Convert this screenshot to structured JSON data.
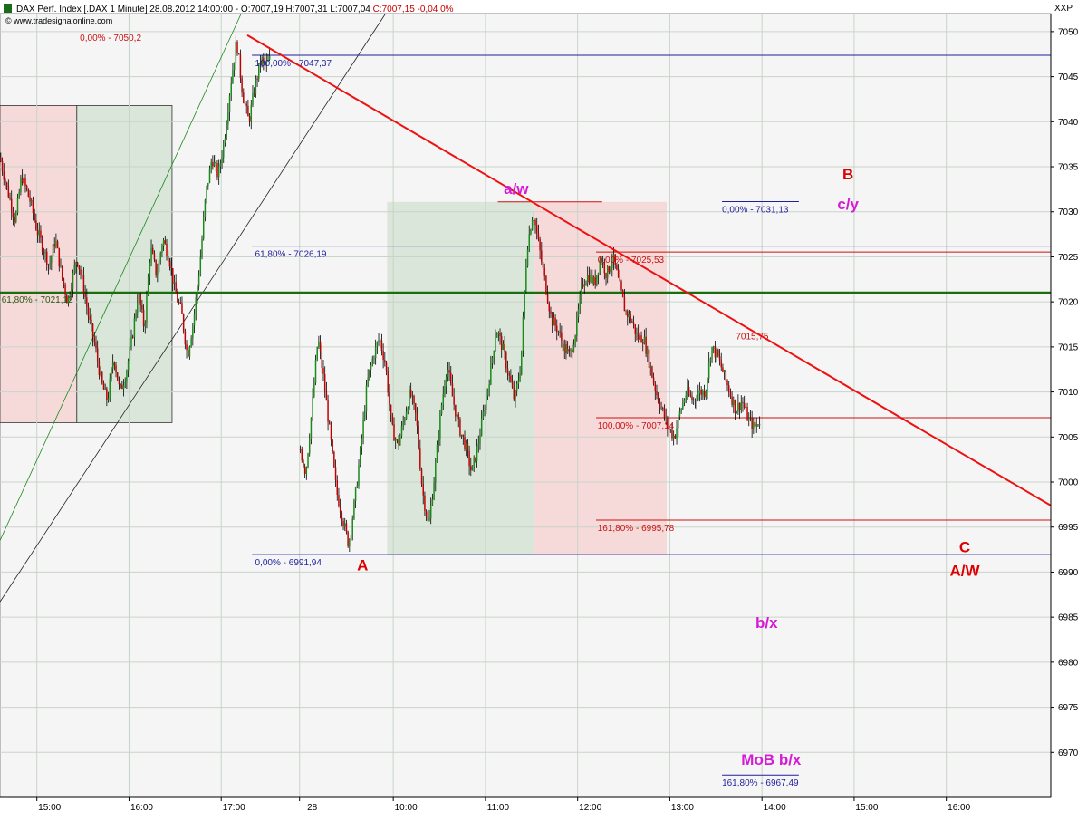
{
  "header": {
    "title": "DAX Perf. Index [.DAX  1 Minute] 28.08.2012 14:00:00 - O:7007,19 H:7007,31 L:7007,04 ",
    "close_text": "C:7007,15 -0,04 0%",
    "source": "© www.tradesignalonline.com",
    "corner_label": "XXP"
  },
  "colors": {
    "bull": "#1a8a1a",
    "bear": "#c00000",
    "fib_blue": "#1f1fa0",
    "fib_red": "#cc1111",
    "trend_red": "#ee1111",
    "support_green": "#1a6e10",
    "wave_magenta": "#d61ad6",
    "wave_red": "#dd0000"
  },
  "chart_data": {
    "type": "candlestick",
    "ylim": [
      6965,
      7052
    ],
    "y_ticks": [
      6970,
      6975,
      6980,
      6985,
      6990,
      6995,
      7000,
      7005,
      7010,
      7015,
      7020,
      7025,
      7030,
      7035,
      7040,
      7045,
      7050
    ],
    "x_ticks": [
      {
        "label": "15:00",
        "t": 0
      },
      {
        "label": "16:00",
        "t": 60
      },
      {
        "label": "17:00",
        "t": 120
      },
      {
        "label": "28",
        "t": 171
      },
      {
        "label": "10:00",
        "t": 232
      },
      {
        "label": "11:00",
        "t": 292
      },
      {
        "label": "12:00",
        "t": 352
      },
      {
        "label": "13:00",
        "t": 412
      },
      {
        "label": "14:00",
        "t": 472
      },
      {
        "label": "15:00",
        "t": 532
      },
      {
        "label": "16:00",
        "t": 592
      }
    ],
    "x_range": [
      -24,
      660
    ],
    "price_path": [
      [
        -24,
        7036
      ],
      [
        -20,
        7033
      ],
      [
        -14,
        7029
      ],
      [
        -10,
        7034
      ],
      [
        -4,
        7031
      ],
      [
        0,
        7028
      ],
      [
        4,
        7026
      ],
      [
        8,
        7024
      ],
      [
        12,
        7027
      ],
      [
        16,
        7023
      ],
      [
        20,
        7020
      ],
      [
        26,
        7025
      ],
      [
        30,
        7022
      ],
      [
        34,
        7018
      ],
      [
        38,
        7015
      ],
      [
        42,
        7011
      ],
      [
        46,
        7009
      ],
      [
        50,
        7014
      ],
      [
        54,
        7010
      ],
      [
        58,
        7012
      ],
      [
        62,
        7016
      ],
      [
        66,
        7021
      ],
      [
        70,
        7017
      ],
      [
        74,
        7026
      ],
      [
        78,
        7023
      ],
      [
        82,
        7027
      ],
      [
        86,
        7025
      ],
      [
        90,
        7021
      ],
      [
        94,
        7019
      ],
      [
        98,
        7014
      ],
      [
        102,
        7018
      ],
      [
        106,
        7024
      ],
      [
        110,
        7032
      ],
      [
        114,
        7036
      ],
      [
        118,
        7034
      ],
      [
        122,
        7038
      ],
      [
        126,
        7044
      ],
      [
        130,
        7049
      ],
      [
        134,
        7043
      ],
      [
        138,
        7040
      ],
      [
        142,
        7044
      ],
      [
        146,
        7047
      ],
      [
        148,
        7046
      ],
      [
        152,
        7047
      ],
      [
        171,
        7004
      ],
      [
        175,
        7001
      ],
      [
        179,
        7008
      ],
      [
        183,
        7016
      ],
      [
        187,
        7011
      ],
      [
        191,
        7005
      ],
      [
        195,
        6999
      ],
      [
        199,
        6996
      ],
      [
        203,
        6993
      ],
      [
        207,
        6998
      ],
      [
        211,
        7004
      ],
      [
        215,
        7011
      ],
      [
        219,
        7014
      ],
      [
        223,
        7016
      ],
      [
        227,
        7013
      ],
      [
        231,
        7006
      ],
      [
        235,
        7004
      ],
      [
        239,
        7007
      ],
      [
        243,
        7010
      ],
      [
        247,
        7007
      ],
      [
        251,
        6999
      ],
      [
        255,
        6995
      ],
      [
        259,
        7001
      ],
      [
        263,
        7008
      ],
      [
        267,
        7013
      ],
      [
        271,
        7009
      ],
      [
        275,
        7006
      ],
      [
        279,
        7004
      ],
      [
        283,
        7001
      ],
      [
        287,
        7004
      ],
      [
        291,
        7008
      ],
      [
        295,
        7012
      ],
      [
        299,
        7017
      ],
      [
        303,
        7015
      ],
      [
        307,
        7012
      ],
      [
        311,
        7009
      ],
      [
        315,
        7013
      ],
      [
        319,
        7026
      ],
      [
        323,
        7030
      ],
      [
        327,
        7026
      ],
      [
        331,
        7022
      ],
      [
        335,
        7018
      ],
      [
        339,
        7017
      ],
      [
        343,
        7015
      ],
      [
        347,
        7014
      ],
      [
        351,
        7017
      ],
      [
        355,
        7022
      ],
      [
        359,
        7023
      ],
      [
        363,
        7022
      ],
      [
        367,
        7025
      ],
      [
        371,
        7023
      ],
      [
        375,
        7025
      ],
      [
        379,
        7022
      ],
      [
        383,
        7019
      ],
      [
        387,
        7018
      ],
      [
        391,
        7016
      ],
      [
        395,
        7016
      ],
      [
        399,
        7013
      ],
      [
        403,
        7010
      ],
      [
        407,
        7008
      ],
      [
        411,
        7006
      ],
      [
        415,
        7005
      ],
      [
        419,
        7008
      ],
      [
        423,
        7010
      ],
      [
        427,
        7009
      ],
      [
        431,
        7010
      ],
      [
        435,
        7010
      ],
      [
        439,
        7015
      ],
      [
        443,
        7014
      ],
      [
        447,
        7012
      ],
      [
        451,
        7010
      ],
      [
        455,
        7008
      ],
      [
        459,
        7009
      ],
      [
        463,
        7007
      ],
      [
        467,
        7006
      ],
      [
        471,
        7007
      ]
    ],
    "fib_levels": [
      {
        "label": "0,00% - 7050,2",
        "price": 7050.2,
        "x1": -24,
        "x2": -24,
        "text_t": 28,
        "color": "fib_red"
      },
      {
        "label": "100,00% - 7047,37",
        "price": 7047.37,
        "x1": 140,
        "x2": 660,
        "text_t": 142,
        "color": "fib_blue"
      },
      {
        "label": "0,00% - 7031,13",
        "price": 7031.13,
        "x1": 446,
        "x2": 496,
        "text_t": 446,
        "color": "fib_blue"
      },
      {
        "label": "61,80% - 7026,19",
        "price": 7026.19,
        "x1": 140,
        "x2": 660,
        "text_t": 142,
        "color": "fib_blue"
      },
      {
        "label": "0,00% - 7025,53",
        "price": 7025.53,
        "x1": 364,
        "x2": 660,
        "text_t": 365,
        "color": "fib_red"
      },
      {
        "label": "61,80% - 7021,12",
        "price": 7021.12,
        "x1": -24,
        "x2": -24,
        "text_t": -23,
        "color": "fib_green"
      },
      {
        "label": "100,00% - 7007,14",
        "price": 7007.14,
        "x1": 364,
        "x2": 660,
        "text_t": 365,
        "color": "fib_red"
      },
      {
        "label": "161,80% - 6995,78",
        "price": 6995.78,
        "x1": 364,
        "x2": 660,
        "text_t": 365,
        "color": "fib_red"
      },
      {
        "label": "0,00% - 6991,94",
        "price": 6991.94,
        "x1": 140,
        "x2": 660,
        "text_t": 142,
        "color": "fib_blue"
      },
      {
        "label": "161,80% - 6967,49",
        "price": 6967.49,
        "x1": 446,
        "x2": 496,
        "text_t": 446,
        "color": "fib_blue"
      }
    ],
    "trend_label": "7015,75",
    "wave_labels": [
      {
        "text": "a/w",
        "t": 312,
        "price": 7032.0,
        "color": "wave_magenta",
        "size": 17
      },
      {
        "text": "A",
        "t": 212,
        "price": 6990.2,
        "color": "wave_red",
        "size": 17
      },
      {
        "text": "B",
        "t": 528,
        "price": 7033.6,
        "color": "wave_red",
        "size": 17
      },
      {
        "text": "c/y",
        "t": 528,
        "price": 7030.3,
        "color": "wave_magenta",
        "size": 17
      },
      {
        "text": "C",
        "t": 604,
        "price": 6992.2,
        "color": "wave_red",
        "size": 17
      },
      {
        "text": "A/W",
        "t": 604,
        "price": 6989.6,
        "color": "wave_red",
        "size": 17
      },
      {
        "text": "b/x",
        "t": 475,
        "price": 6983.8,
        "color": "wave_magenta",
        "size": 17
      },
      {
        "text": "MoB b/x",
        "t": 478,
        "price": 6968.6,
        "color": "wave_magenta",
        "size": 17
      }
    ]
  }
}
